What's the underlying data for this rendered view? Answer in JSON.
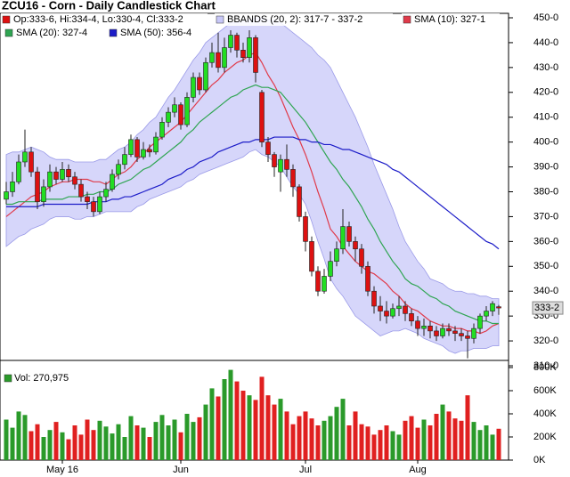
{
  "chart_data": [
    {
      "type": "candlestick",
      "title": "ZCU16 - Corn - Daily Candlestick Chart",
      "ohlc_legend": "Op:333-6, Hi:334-4, Lo:330-4, Cl:333-2",
      "last_label": "333-2",
      "up_color": "#22dd22",
      "down_color": "#dd1111",
      "categories": [
        null,
        null,
        null,
        null,
        null,
        null,
        null,
        null,
        null,
        "May 16",
        null,
        null,
        null,
        null,
        null,
        null,
        null,
        null,
        null,
        null,
        null,
        null,
        null,
        null,
        null,
        null,
        null,
        null,
        "Jun",
        null,
        null,
        null,
        null,
        null,
        null,
        null,
        null,
        null,
        null,
        null,
        null,
        null,
        null,
        null,
        null,
        null,
        null,
        null,
        "Jul",
        null,
        null,
        null,
        null,
        null,
        null,
        null,
        null,
        null,
        null,
        null,
        null,
        null,
        null,
        null,
        null,
        null,
        "Aug",
        null,
        null,
        null,
        null,
        null,
        null,
        null,
        null,
        null,
        null,
        null,
        null,
        null
      ],
      "candles": [
        [
          377,
          384,
          375,
          380
        ],
        [
          380,
          388,
          378,
          384
        ],
        [
          384,
          395,
          383,
          392
        ],
        [
          392,
          405,
          390,
          396
        ],
        [
          396,
          398,
          386,
          388
        ],
        [
          388,
          390,
          373,
          376
        ],
        [
          376,
          385,
          374,
          382
        ],
        [
          382,
          391,
          380,
          388
        ],
        [
          388,
          390,
          383,
          385
        ],
        [
          385,
          392,
          384,
          389
        ],
        [
          389,
          391,
          384,
          386
        ],
        [
          386,
          388,
          381,
          383
        ],
        [
          383,
          385,
          376,
          378
        ],
        [
          378,
          380,
          373,
          376
        ],
        [
          376,
          378,
          370,
          372
        ],
        [
          372,
          380,
          371,
          378
        ],
        [
          378,
          384,
          376,
          381
        ],
        [
          381,
          389,
          380,
          387
        ],
        [
          387,
          393,
          385,
          391
        ],
        [
          391,
          398,
          389,
          395
        ],
        [
          395,
          403,
          394,
          401
        ],
        [
          401,
          402,
          392,
          394
        ],
        [
          394,
          400,
          393,
          397
        ],
        [
          397,
          399,
          394,
          396
        ],
        [
          396,
          404,
          395,
          402
        ],
        [
          402,
          410,
          401,
          408
        ],
        [
          408,
          414,
          406,
          412
        ],
        [
          412,
          418,
          410,
          415
        ],
        [
          415,
          416,
          405,
          407
        ],
        [
          407,
          420,
          406,
          418
        ],
        [
          418,
          428,
          416,
          426
        ],
        [
          426,
          428,
          419,
          421
        ],
        [
          421,
          434,
          420,
          432
        ],
        [
          432,
          440,
          430,
          436
        ],
        [
          436,
          444,
          428,
          430
        ],
        [
          430,
          442,
          428,
          438
        ],
        [
          438,
          445,
          436,
          443
        ],
        [
          443,
          444,
          434,
          437
        ],
        [
          437,
          440,
          432,
          434
        ],
        [
          434,
          445,
          432,
          442
        ],
        [
          442,
          443,
          424,
          428
        ],
        [
          420,
          421,
          398,
          400
        ],
        [
          400,
          402,
          392,
          395
        ],
        [
          395,
          396,
          386,
          390
        ],
        [
          388,
          395,
          380,
          393
        ],
        [
          393,
          399,
          386,
          389
        ],
        [
          389,
          391,
          378,
          382
        ],
        [
          382,
          383,
          368,
          370
        ],
        [
          370,
          372,
          356,
          360
        ],
        [
          360,
          362,
          346,
          348
        ],
        [
          348,
          350,
          338,
          340
        ],
        [
          340,
          349,
          339,
          346
        ],
        [
          346,
          356,
          344,
          352
        ],
        [
          352,
          360,
          350,
          357
        ],
        [
          357,
          373,
          355,
          366
        ],
        [
          366,
          368,
          358,
          360
        ],
        [
          360,
          362,
          352,
          357
        ],
        [
          357,
          359,
          347,
          350
        ],
        [
          350,
          352,
          338,
          340
        ],
        [
          340,
          342,
          331,
          334
        ],
        [
          334,
          338,
          328,
          332
        ],
        [
          332,
          336,
          327,
          330
        ],
        [
          330,
          335,
          329,
          333
        ],
        [
          333,
          338,
          330,
          334
        ],
        [
          334,
          336,
          328,
          331
        ],
        [
          331,
          333,
          326,
          328
        ],
        [
          328,
          330,
          322,
          325
        ],
        [
          325,
          329,
          322,
          326
        ],
        [
          326,
          328,
          321,
          324
        ],
        [
          324,
          326,
          320,
          322
        ],
        [
          322,
          327,
          321,
          325
        ],
        [
          325,
          327,
          322,
          324
        ],
        [
          324,
          326,
          320,
          323
        ],
        [
          323,
          325,
          320,
          322
        ],
        [
          322,
          324,
          313,
          321
        ],
        [
          321,
          327,
          319,
          325
        ],
        [
          325,
          331,
          323,
          330
        ],
        [
          330,
          334,
          328,
          332
        ],
        [
          332,
          336,
          330,
          335
        ],
        [
          333.75,
          334.5,
          330.5,
          333.25
        ]
      ],
      "ylim": [
        310,
        450
      ],
      "yticks": [
        {
          "value": 310,
          "label": "310-0"
        },
        {
          "value": 320,
          "label": "320-0"
        },
        {
          "value": 330,
          "label": "330-0"
        },
        {
          "value": 340,
          "label": "340-0"
        },
        {
          "value": 350,
          "label": "350-0"
        },
        {
          "value": 360,
          "label": "360-0"
        },
        {
          "value": 370,
          "label": "370-0"
        },
        {
          "value": 380,
          "label": "380-0"
        },
        {
          "value": 390,
          "label": "390-0"
        },
        {
          "value": 400,
          "label": "400-0"
        },
        {
          "value": 410,
          "label": "410-0"
        },
        {
          "value": 420,
          "label": "420-0"
        },
        {
          "value": 430,
          "label": "430-0"
        },
        {
          "value": 440,
          "label": "440-0"
        },
        {
          "value": 450,
          "label": "450-0"
        }
      ],
      "bands": {
        "name": "BBANDS (20, 2): 317-7 - 337-2",
        "color": "#c8c8f8",
        "upper": [
          395,
          396,
          396,
          397,
          398,
          397,
          396,
          394,
          393,
          393,
          393,
          392,
          392,
          392,
          392,
          393,
          393,
          395,
          397,
          398,
          400,
          403,
          405,
          408,
          410,
          414,
          418,
          421,
          425,
          429,
          433,
          436,
          440,
          442,
          444,
          446,
          448,
          448,
          449,
          449,
          450,
          450,
          449,
          449,
          448,
          446,
          444,
          442,
          440,
          438,
          435,
          433,
          430,
          425,
          420,
          415,
          410,
          404,
          398,
          391,
          385,
          379,
          373,
          366,
          360,
          356,
          352,
          349,
          345,
          344,
          343,
          341,
          340,
          340,
          339,
          339,
          338,
          338,
          337,
          337
        ],
        "lower": [
          358,
          360,
          362,
          363,
          365,
          366,
          367,
          369,
          370,
          370,
          370,
          369,
          369,
          370,
          370,
          371,
          372,
          372,
          372,
          372,
          372,
          374,
          375,
          377,
          378,
          379,
          380,
          381,
          382,
          384,
          385,
          387,
          388,
          389,
          390,
          391,
          392,
          393,
          394,
          396,
          397,
          395,
          394,
          392,
          390,
          386,
          382,
          379,
          375,
          368,
          360,
          353,
          345,
          341,
          338,
          334,
          330,
          328,
          326,
          324,
          322,
          323,
          324,
          324,
          325,
          324,
          323,
          321,
          320,
          319,
          318,
          316,
          315,
          316,
          316,
          317,
          317,
          317,
          318,
          318
        ]
      },
      "series": [
        {
          "name": "SMA (10): 327-1",
          "color": "#e03a4a",
          "values": [
            370,
            372,
            374,
            376,
            378,
            379,
            380,
            382,
            383,
            384,
            384,
            385,
            385,
            385,
            384,
            384,
            383,
            385,
            387,
            388,
            390,
            393,
            395,
            398,
            400,
            402,
            404,
            406,
            408,
            411,
            414,
            417,
            420,
            423,
            425,
            428,
            430,
            432,
            433,
            435,
            436,
            432,
            427,
            423,
            418,
            412,
            406,
            401,
            395,
            388,
            380,
            373,
            365,
            362,
            358,
            355,
            352,
            350,
            348,
            347,
            345,
            343,
            340,
            338,
            335,
            333,
            332,
            330,
            328,
            327,
            326,
            326,
            325,
            325,
            324,
            324,
            323,
            324,
            326,
            327
          ]
        },
        {
          "name": "SMA (20): 327-4",
          "color": "#2fa552",
          "values": [
            375,
            375,
            376,
            376,
            376,
            376,
            377,
            377,
            377,
            377,
            378,
            378,
            378,
            379,
            379,
            380,
            380,
            381,
            383,
            384,
            385,
            387,
            389,
            390,
            392,
            394,
            396,
            398,
            400,
            403,
            405,
            408,
            410,
            412,
            414,
            416,
            418,
            419,
            421,
            422,
            423,
            422,
            422,
            421,
            420,
            417,
            414,
            411,
            408,
            404,
            400,
            396,
            392,
            389,
            385,
            382,
            378,
            374,
            369,
            365,
            360,
            356,
            352,
            349,
            345,
            343,
            342,
            340,
            338,
            337,
            335,
            334,
            332,
            331,
            330,
            329,
            328,
            328,
            327,
            327
          ]
        },
        {
          "name": "SMA (50): 356-4",
          "color": "#1c1cc8",
          "values": [
            374,
            374,
            374,
            374,
            374,
            374,
            375,
            375,
            375,
            375,
            375,
            375,
            375,
            375,
            376,
            376,
            376,
            377,
            377,
            378,
            378,
            379,
            380,
            381,
            382,
            383,
            385,
            386,
            387,
            389,
            390,
            392,
            393,
            394,
            396,
            397,
            398,
            399,
            400,
            400,
            401,
            401,
            401,
            402,
            402,
            402,
            402,
            401,
            401,
            400,
            400,
            399,
            399,
            398,
            397,
            397,
            396,
            395,
            394,
            393,
            392,
            391,
            389,
            388,
            386,
            384,
            382,
            380,
            378,
            376,
            374,
            372,
            370,
            368,
            366,
            364,
            362,
            360,
            359,
            357
          ]
        }
      ]
    },
    {
      "type": "bar",
      "legend": "Vol: 270,975",
      "up_color": "#2a9a2a",
      "down_color": "#e02020",
      "values": [
        350000,
        280000,
        420000,
        390000,
        250000,
        310000,
        200000,
        260000,
        330000,
        240000,
        180000,
        300000,
        220000,
        350000,
        260000,
        340000,
        290000,
        230000,
        310000,
        200000,
        380000,
        300000,
        280000,
        200000,
        330000,
        390000,
        300000,
        350000,
        240000,
        400000,
        330000,
        370000,
        480000,
        620000,
        550000,
        700000,
        780000,
        680000,
        600000,
        560000,
        520000,
        720000,
        560000,
        480000,
        530000,
        420000,
        310000,
        380000,
        420000,
        360000,
        300000,
        340000,
        380000,
        460000,
        530000,
        300000,
        420000,
        310000,
        290000,
        220000,
        260000,
        300000,
        250000,
        220000,
        340000,
        380000,
        280000,
        350000,
        300000,
        400000,
        480000,
        420000,
        360000,
        340000,
        560000,
        330000,
        260000,
        300000,
        220000,
        270975
      ],
      "ylim": [
        0,
        800000
      ],
      "yticks": [
        {
          "value": 0,
          "label": "0K"
        },
        {
          "value": 200000,
          "label": "200K"
        },
        {
          "value": 400000,
          "label": "400K"
        },
        {
          "value": 600000,
          "label": "600K"
        },
        {
          "value": 800000,
          "label": "800K"
        }
      ]
    }
  ]
}
